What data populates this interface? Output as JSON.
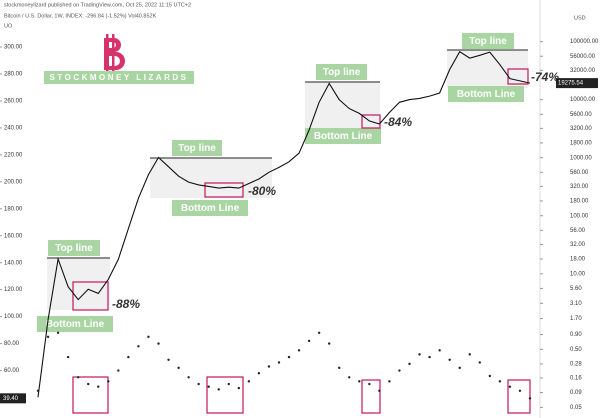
{
  "chart_data": {
    "type": "line",
    "header": "stockmoneylizard published on TradingView.com, Oct 25, 2022 11:15 UTC+2",
    "symbol": "Bitcoin / U.S. Dollar, 1W, INDEX: -296.84 (-1.52%) Vol40.852K",
    "indicator": "UO",
    "currency": "USD",
    "watermark": "STOCKMONEY LIZARDS",
    "categories": [
      null,
      null,
      null,
      null,
      null,
      null,
      null,
      null,
      null,
      null,
      null,
      null,
      null,
      null,
      null,
      null,
      null,
      null,
      null,
      null,
      null,
      null,
      null,
      null,
      null,
      null,
      null,
      null,
      null,
      null,
      null,
      null,
      null,
      null,
      null,
      null,
      null,
      null,
      null,
      null,
      null,
      null,
      null,
      null,
      null,
      null,
      null,
      null,
      null,
      null
    ],
    "series": [
      {
        "name": "Bitcoin",
        "color": "#111111",
        "axis": "y2",
        "values": [
          0.075,
          1.64,
          18,
          6,
          3.6,
          5.4,
          4.6,
          8,
          17.7,
          60,
          200,
          514,
          1007,
          700,
          480,
          380,
          340,
          320,
          300,
          310,
          300,
          360,
          430,
          560,
          680,
          850,
          1200,
          3000,
          9000,
          19000,
          10000,
          7000,
          5800,
          4300,
          3800,
          6000,
          9000,
          10000,
          10500,
          11500,
          13000,
          33000,
          67000,
          52000,
          58000,
          66000,
          40000,
          23000,
          21000,
          19275.54
        ]
      },
      {
        "name": "UO",
        "color": "#222222",
        "values": [
          45,
          85,
          88,
          70,
          55,
          50,
          48,
          52,
          60,
          70,
          78,
          85,
          80,
          68,
          62,
          55,
          50,
          48,
          46,
          50,
          47,
          52,
          58,
          63,
          66,
          70,
          75,
          82,
          88,
          80,
          62,
          55,
          52,
          50,
          45,
          52,
          60,
          65,
          72,
          70,
          75,
          68,
          62,
          72,
          66,
          56,
          52,
          48,
          45,
          39.4
        ],
        "last_label": "39.40"
      }
    ],
    "ylim": [
      30,
      300
    ],
    "yticks": [
      {
        "value": 300,
        "label": "300.00"
      },
      {
        "value": 280,
        "label": "280.00"
      },
      {
        "value": 260,
        "label": "260.00"
      },
      {
        "value": 240,
        "label": "240.00"
      },
      {
        "value": 220,
        "label": "220.00"
      },
      {
        "value": 200,
        "label": "200.00"
      },
      {
        "value": 180,
        "label": "180.00"
      },
      {
        "value": 160,
        "label": "160.00"
      },
      {
        "value": 140,
        "label": "140.00"
      },
      {
        "value": 120,
        "label": "120.00"
      },
      {
        "value": 100,
        "label": "100.00"
      },
      {
        "value": 80,
        "label": "80.00"
      },
      {
        "value": 60,
        "label": "60.00"
      }
    ],
    "y2lim": [
      0.04,
      120000
    ],
    "y2log": true,
    "y2ticks": [
      {
        "value": 100000,
        "label": "100000.00"
      },
      {
        "value": 56000,
        "label": "56000.00"
      },
      {
        "value": 32000,
        "label": "32000.00"
      },
      {
        "value": 10000,
        "label": "10000.00"
      },
      {
        "value": 5600,
        "label": "5600.00"
      },
      {
        "value": 3200,
        "label": "3200.00"
      },
      {
        "value": 1800,
        "label": "1800.00"
      },
      {
        "value": 1000,
        "label": "1000.00"
      },
      {
        "value": 560,
        "label": "560.00"
      },
      {
        "value": 320,
        "label": "320.00"
      },
      {
        "value": 180,
        "label": "180.00"
      },
      {
        "value": 100,
        "label": "100.00"
      },
      {
        "value": 56,
        "label": "56.00"
      },
      {
        "value": 32,
        "label": "32.00"
      },
      {
        "value": 18,
        "label": "18.00"
      },
      {
        "value": 10,
        "label": "10.00"
      },
      {
        "value": 5.6,
        "label": "5.60"
      },
      {
        "value": 3.1,
        "label": "3.10"
      },
      {
        "value": 1.7,
        "label": "1.70"
      },
      {
        "value": 0.9,
        "label": "0.90"
      },
      {
        "value": 0.5,
        "label": "0.50"
      },
      {
        "value": 0.28,
        "label": "0.28"
      },
      {
        "value": 0.16,
        "label": "0.16"
      },
      {
        "value": 0.09,
        "label": "0.09"
      },
      {
        "value": 0.05,
        "label": "0.05"
      }
    ],
    "annotations": [
      {
        "top": "Top line",
        "bottom": "Bottom Line",
        "drawdown": "-88%"
      },
      {
        "top": "Top line",
        "bottom": "Bottom Line",
        "drawdown": "-80%"
      },
      {
        "top": "Top line",
        "bottom": "Bottom Line",
        "drawdown": "-84%"
      },
      {
        "top": "Top line",
        "bottom": "Bottom Line",
        "drawdown": "-74%"
      }
    ]
  }
}
